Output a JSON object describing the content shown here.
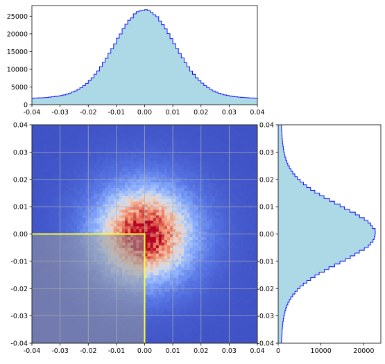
{
  "chart_data": [
    {
      "type": "histogram",
      "panel": "top-marginal",
      "orientation": "vertical",
      "xlim": [
        -0.04,
        0.04
      ],
      "ylim": [
        0,
        28000
      ],
      "xticks": [
        "-0.04",
        "-0.03",
        "-0.02",
        "-0.01",
        "0.00",
        "0.01",
        "0.02",
        "0.03",
        "0.04"
      ],
      "yticks": [
        "0",
        "5000",
        "10000",
        "15000",
        "20000",
        "25000"
      ],
      "distribution": {
        "shape": "gaussian-peaked",
        "center": 0.0,
        "peak_count": 26800,
        "edge_count": 1200
      },
      "fill_color": "#add8e6",
      "edge_color": "#0000ff"
    },
    {
      "type": "heatmap",
      "panel": "joint",
      "xlim": [
        -0.04,
        0.04
      ],
      "ylim": [
        -0.04,
        0.04
      ],
      "xticks": [
        "-0.04",
        "-0.03",
        "-0.02",
        "-0.01",
        "0.00",
        "0.01",
        "0.02",
        "0.03",
        "0.04"
      ],
      "yticks": [
        "-0.04",
        "-0.03",
        "-0.02",
        "-0.01",
        "0.00",
        "0.01",
        "0.02",
        "0.03",
        "0.04"
      ],
      "grid": true,
      "colormap": "coolwarm-like",
      "peak_location": [
        0.0,
        0.0
      ],
      "highlight_region": {
        "x": [
          -0.04,
          0.0
        ],
        "y": [
          -0.04,
          0.0
        ],
        "overlay_color": "#9a9a9a",
        "border_color": "#ffff33"
      }
    },
    {
      "type": "histogram",
      "panel": "right-marginal",
      "orientation": "horizontal",
      "xlim": [
        0,
        24000
      ],
      "ylim": [
        -0.04,
        0.04
      ],
      "xticks": [
        "0",
        "10000",
        "20000"
      ],
      "yticks": [
        "-0.04",
        "-0.03",
        "-0.02",
        "-0.01",
        "0.00",
        "0.01",
        "0.02",
        "0.03",
        "0.04"
      ],
      "distribution": {
        "shape": "gaussian-peaked",
        "center": 0.0,
        "peak_count": 22800,
        "edge_count": 200
      },
      "fill_color": "#add8e6",
      "edge_color": "#0000ff"
    }
  ]
}
